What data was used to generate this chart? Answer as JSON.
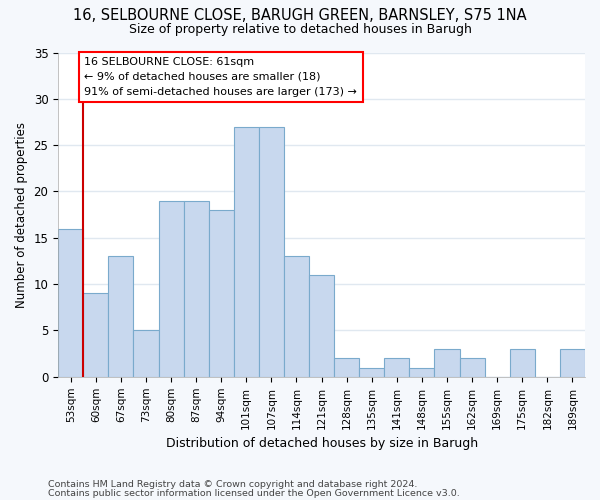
{
  "title1": "16, SELBOURNE CLOSE, BARUGH GREEN, BARNSLEY, S75 1NA",
  "title2": "Size of property relative to detached houses in Barugh",
  "xlabel": "Distribution of detached houses by size in Barugh",
  "ylabel": "Number of detached properties",
  "categories": [
    "53sqm",
    "60sqm",
    "67sqm",
    "73sqm",
    "80sqm",
    "87sqm",
    "94sqm",
    "101sqm",
    "107sqm",
    "114sqm",
    "121sqm",
    "128sqm",
    "135sqm",
    "141sqm",
    "148sqm",
    "155sqm",
    "162sqm",
    "169sqm",
    "175sqm",
    "182sqm",
    "189sqm"
  ],
  "values": [
    16,
    9,
    13,
    5,
    19,
    19,
    18,
    27,
    27,
    13,
    11,
    2,
    1,
    2,
    1,
    3,
    2,
    0,
    3,
    0,
    3
  ],
  "bar_color": "#c8d8ee",
  "bar_edge_color": "#7aaacc",
  "annotation_text_line1": "16 SELBOURNE CLOSE: 61sqm",
  "annotation_text_line2": "← 9% of detached houses are smaller (18)",
  "annotation_text_line3": "91% of semi-detached houses are larger (173) →",
  "property_line_color": "#cc0000",
  "ylim": [
    0,
    35
  ],
  "yticks": [
    0,
    5,
    10,
    15,
    20,
    25,
    30,
    35
  ],
  "footnote1": "Contains HM Land Registry data © Crown copyright and database right 2024.",
  "footnote2": "Contains public sector information licensed under the Open Government Licence v3.0.",
  "background_color": "#f5f8fc",
  "plot_bg_color": "#ffffff",
  "grid_color": "#e0e8f0"
}
